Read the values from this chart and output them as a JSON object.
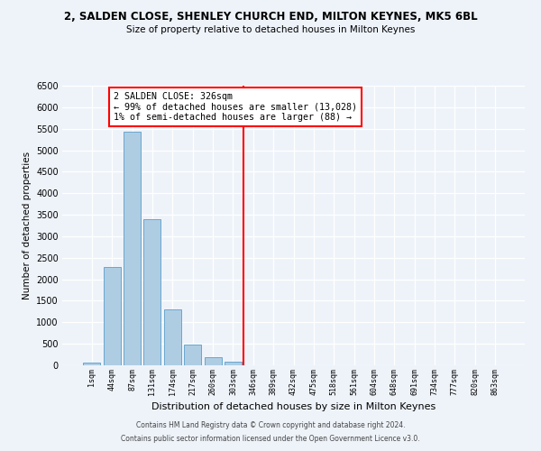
{
  "title": "2, SALDEN CLOSE, SHENLEY CHURCH END, MILTON KEYNES, MK5 6BL",
  "subtitle": "Size of property relative to detached houses in Milton Keynes",
  "xlabel": "Distribution of detached houses by size in Milton Keynes",
  "ylabel": "Number of detached properties",
  "footnote1": "Contains HM Land Registry data © Crown copyright and database right 2024.",
  "footnote2": "Contains public sector information licensed under the Open Government Licence v3.0.",
  "bar_labels": [
    "1sqm",
    "44sqm",
    "87sqm",
    "131sqm",
    "174sqm",
    "217sqm",
    "260sqm",
    "303sqm",
    "346sqm",
    "389sqm",
    "432sqm",
    "475sqm",
    "518sqm",
    "561sqm",
    "604sqm",
    "648sqm",
    "691sqm",
    "734sqm",
    "777sqm",
    "820sqm",
    "863sqm"
  ],
  "bar_values": [
    70,
    2280,
    5440,
    3400,
    1310,
    480,
    190,
    90,
    10,
    5,
    2,
    1,
    0,
    0,
    0,
    0,
    0,
    0,
    0,
    0,
    0
  ],
  "bar_color": "#aecde3",
  "bar_edge_color": "#5a9ec9",
  "vline_x": 7.5,
  "vline_color": "red",
  "annotation_title": "2 SALDEN CLOSE: 326sqm",
  "annotation_line1": "← 99% of detached houses are smaller (13,028)",
  "annotation_line2": "1% of semi-detached houses are larger (88) →",
  "ylim": [
    0,
    6500
  ],
  "yticks": [
    0,
    500,
    1000,
    1500,
    2000,
    2500,
    3000,
    3500,
    4000,
    4500,
    5000,
    5500,
    6000,
    6500
  ],
  "bg_color": "#eef3fa",
  "plot_bg_color": "#eef3fa"
}
